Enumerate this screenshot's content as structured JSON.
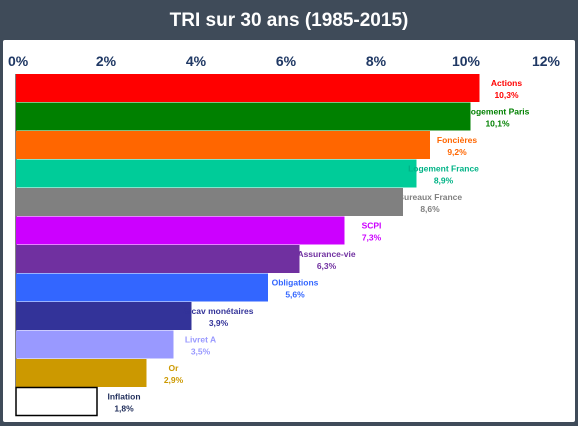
{
  "title": "TRI sur 30 ans (1985-2015)",
  "chart_data": {
    "type": "bar",
    "orientation": "horizontal",
    "xlim": [
      0,
      12
    ],
    "x_ticks": [
      "0%",
      "2%",
      "4%",
      "6%",
      "8%",
      "10%",
      "12%"
    ],
    "x_tick_values": [
      0,
      2,
      4,
      6,
      8,
      10,
      12
    ],
    "bars": [
      {
        "label": "Actions",
        "value_label": "10,3%",
        "value": 10.3,
        "color": "#ff0000",
        "label_color": "#ff0000"
      },
      {
        "label": "Logement Paris",
        "value_label": "10,1%",
        "value": 10.1,
        "color": "#008000",
        "label_color": "#008000"
      },
      {
        "label": "Foncières",
        "value_label": "9,2%",
        "value": 9.2,
        "color": "#ff6600",
        "label_color": "#ff6600"
      },
      {
        "label": "Logement France",
        "value_label": "8,9%",
        "value": 8.9,
        "color": "#00cc99",
        "label_color": "#00b386"
      },
      {
        "label": "Bureaux France",
        "value_label": "8,6%",
        "value": 8.6,
        "color": "#808080",
        "label_color": "#808080"
      },
      {
        "label": "SCPI",
        "value_label": "7,3%",
        "value": 7.3,
        "color": "#cc00ff",
        "label_color": "#cc00ff"
      },
      {
        "label": "Assurance-vie",
        "value_label": "6,3%",
        "value": 6.3,
        "color": "#7030a0",
        "label_color": "#7030a0"
      },
      {
        "label": "Obligations",
        "value_label": "5,6%",
        "value": 5.6,
        "color": "#3366ff",
        "label_color": "#3366ff"
      },
      {
        "label": "Sicav monétaires",
        "value_label": "3,9%",
        "value": 3.9,
        "color": "#333399",
        "label_color": "#333399"
      },
      {
        "label": "Livret A",
        "value_label": "3,5%",
        "value": 3.5,
        "color": "#9999ff",
        "label_color": "#9999ff"
      },
      {
        "label": "Or",
        "value_label": "2,9%",
        "value": 2.9,
        "color": "#cc9900",
        "label_color": "#cc9900"
      },
      {
        "label": "Inflation",
        "value_label": "1,8%",
        "value": 1.8,
        "color": "#ffffff",
        "label_color": "#1f2d5a",
        "outline": "#000000"
      }
    ],
    "tick_color": "#1f3864",
    "grid": false
  }
}
